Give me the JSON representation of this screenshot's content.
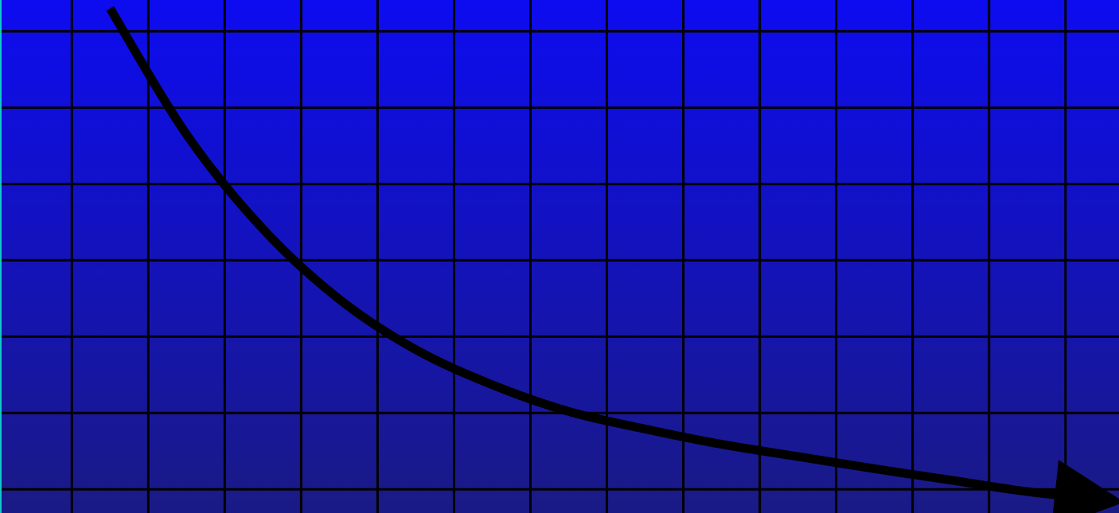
{
  "chart_data": {
    "type": "line",
    "title": "",
    "xlabel": "",
    "ylabel": "",
    "grid": true,
    "xlim": [
      0,
      14.64
    ],
    "ylim": [
      0,
      6.72
    ],
    "x_ticks": [
      0.94,
      1.94,
      2.94,
      3.94,
      4.94,
      5.94,
      6.94,
      7.94,
      8.94,
      9.94,
      10.94,
      11.94,
      12.94,
      13.94
    ],
    "y_ticks": [
      0.31,
      1.31,
      2.31,
      3.31,
      4.31,
      5.31,
      6.31
    ],
    "series": [
      {
        "x": [
          1.44,
          2.44,
          3.44,
          4.44,
          5.44,
          6.44,
          7.44,
          8.44,
          9.44,
          10.44,
          11.44,
          12.44,
          13.44,
          14.54
        ],
        "y": [
          6.61,
          4.96,
          3.72,
          2.8,
          2.14,
          1.68,
          1.33,
          1.1,
          0.9,
          0.74,
          0.58,
          0.43,
          0.28,
          0.16
        ],
        "arrow_at_end": true
      }
    ],
    "colors": {
      "background_top": "#0d0cf0",
      "background_bottom": "#1a1a85",
      "grid": "#000000",
      "line": "#000000",
      "left_edge": "#10c8c8"
    }
  }
}
